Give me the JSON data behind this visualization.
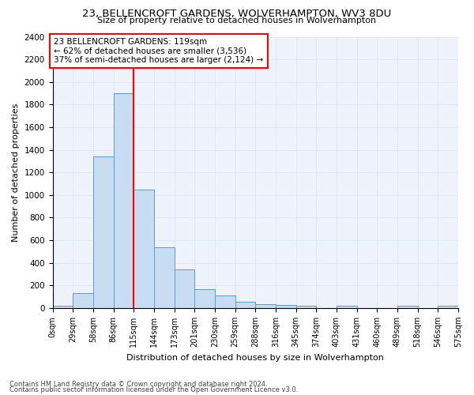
{
  "title": "23, BELLENCROFT GARDENS, WOLVERHAMPTON, WV3 8DU",
  "subtitle": "Size of property relative to detached houses in Wolverhampton",
  "xlabel": "Distribution of detached houses by size in Wolverhampton",
  "ylabel": "Number of detached properties",
  "bar_vals": [
    20,
    130,
    1340,
    1900,
    1045,
    540,
    340,
    165,
    110,
    55,
    35,
    30,
    20,
    0,
    20,
    0,
    0,
    20,
    0,
    20
  ],
  "bin_labels": [
    "0sqm",
    "29sqm",
    "58sqm",
    "86sqm",
    "115sqm",
    "144sqm",
    "173sqm",
    "201sqm",
    "230sqm",
    "259sqm",
    "288sqm",
    "316sqm",
    "345sqm",
    "374sqm",
    "403sqm",
    "431sqm",
    "460sqm",
    "489sqm",
    "518sqm",
    "546sqm",
    "575sqm"
  ],
  "bar_color": "#c9ddf2",
  "bar_edge_color": "#5b9bd5",
  "grid_color": "#dce8f5",
  "background_color": "#eef3fb",
  "annotation_text": "23 BELLENCROFT GARDENS: 119sqm\n← 62% of detached houses are smaller (3,536)\n37% of semi-detached houses are larger (2,124) →",
  "footer1": "Contains HM Land Registry data © Crown copyright and database right 2024.",
  "footer2": "Contains public sector information licensed under the Open Government Licence v3.0.",
  "ylim": [
    0,
    2400
  ],
  "yticks": [
    0,
    200,
    400,
    600,
    800,
    1000,
    1200,
    1400,
    1600,
    1800,
    2000,
    2200,
    2400
  ],
  "n_bins": 20,
  "bin_width": 29,
  "red_line_bin": 4
}
